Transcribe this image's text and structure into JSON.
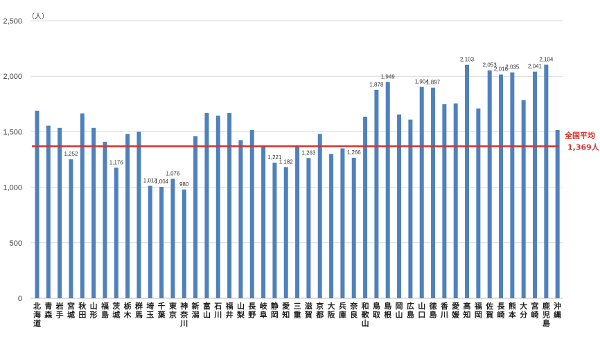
{
  "chart_data": {
    "type": "bar",
    "unit_label": "（人）",
    "ylim": [
      0,
      2500
    ],
    "yticks": [
      0,
      500,
      1000,
      1500,
      2000,
      2500
    ],
    "ytick_labels": [
      "0",
      "500",
      "1,000",
      "1,500",
      "2,000",
      "2,500"
    ],
    "grid": true,
    "bar_color": "#4f81bd",
    "categories": [
      "北海道",
      "青森",
      "岩手",
      "宮城",
      "秋田",
      "山形",
      "福島",
      "茨城",
      "栃木",
      "群馬",
      "埼玉",
      "千葉",
      "東京",
      "神奈川",
      "新潟",
      "富山",
      "石川",
      "福井",
      "山梨",
      "長野",
      "岐阜",
      "静岡",
      "愛知",
      "三重",
      "滋賀",
      "京都",
      "大阪",
      "兵庫",
      "奈良",
      "和歌山",
      "鳥取",
      "島根",
      "岡山",
      "広島",
      "山口",
      "徳島",
      "香川",
      "愛媛",
      "高知",
      "福岡",
      "佐賀",
      "長崎",
      "熊本",
      "大分",
      "宮崎",
      "鹿児島",
      "沖縄"
    ],
    "values": [
      1690,
      1555,
      1535,
      1252,
      1665,
      1535,
      1410,
      1176,
      1480,
      1500,
      1013,
      1004,
      1076,
      980,
      1460,
      1670,
      1645,
      1670,
      1425,
      1515,
      1365,
      1221,
      1182,
      1370,
      1263,
      1480,
      1300,
      1350,
      1266,
      1635,
      1878,
      1949,
      1655,
      1610,
      1904,
      1897,
      1750,
      1755,
      2103,
      1710,
      2053,
      2016,
      2035,
      1785,
      2041,
      2104,
      1515
    ],
    "data_labels": {
      "3": "1,252",
      "7": "1,176",
      "10": "1,013",
      "11": "1,004",
      "12": "1,076",
      "13": "980",
      "21": "1,221",
      "22": "1,182",
      "24": "1,263",
      "28": "1,266",
      "30": "1,878",
      "31": "1,949",
      "34": "1,904",
      "35": "1,897",
      "38": "2,103",
      "40": "2,053",
      "41": "2,016",
      "42": "2,035",
      "44": "2,041",
      "45": "2,104"
    },
    "average": {
      "value": 1369,
      "label_line1": "全国平均",
      "label_line2": "1,369人",
      "color": "#d9322b"
    }
  }
}
